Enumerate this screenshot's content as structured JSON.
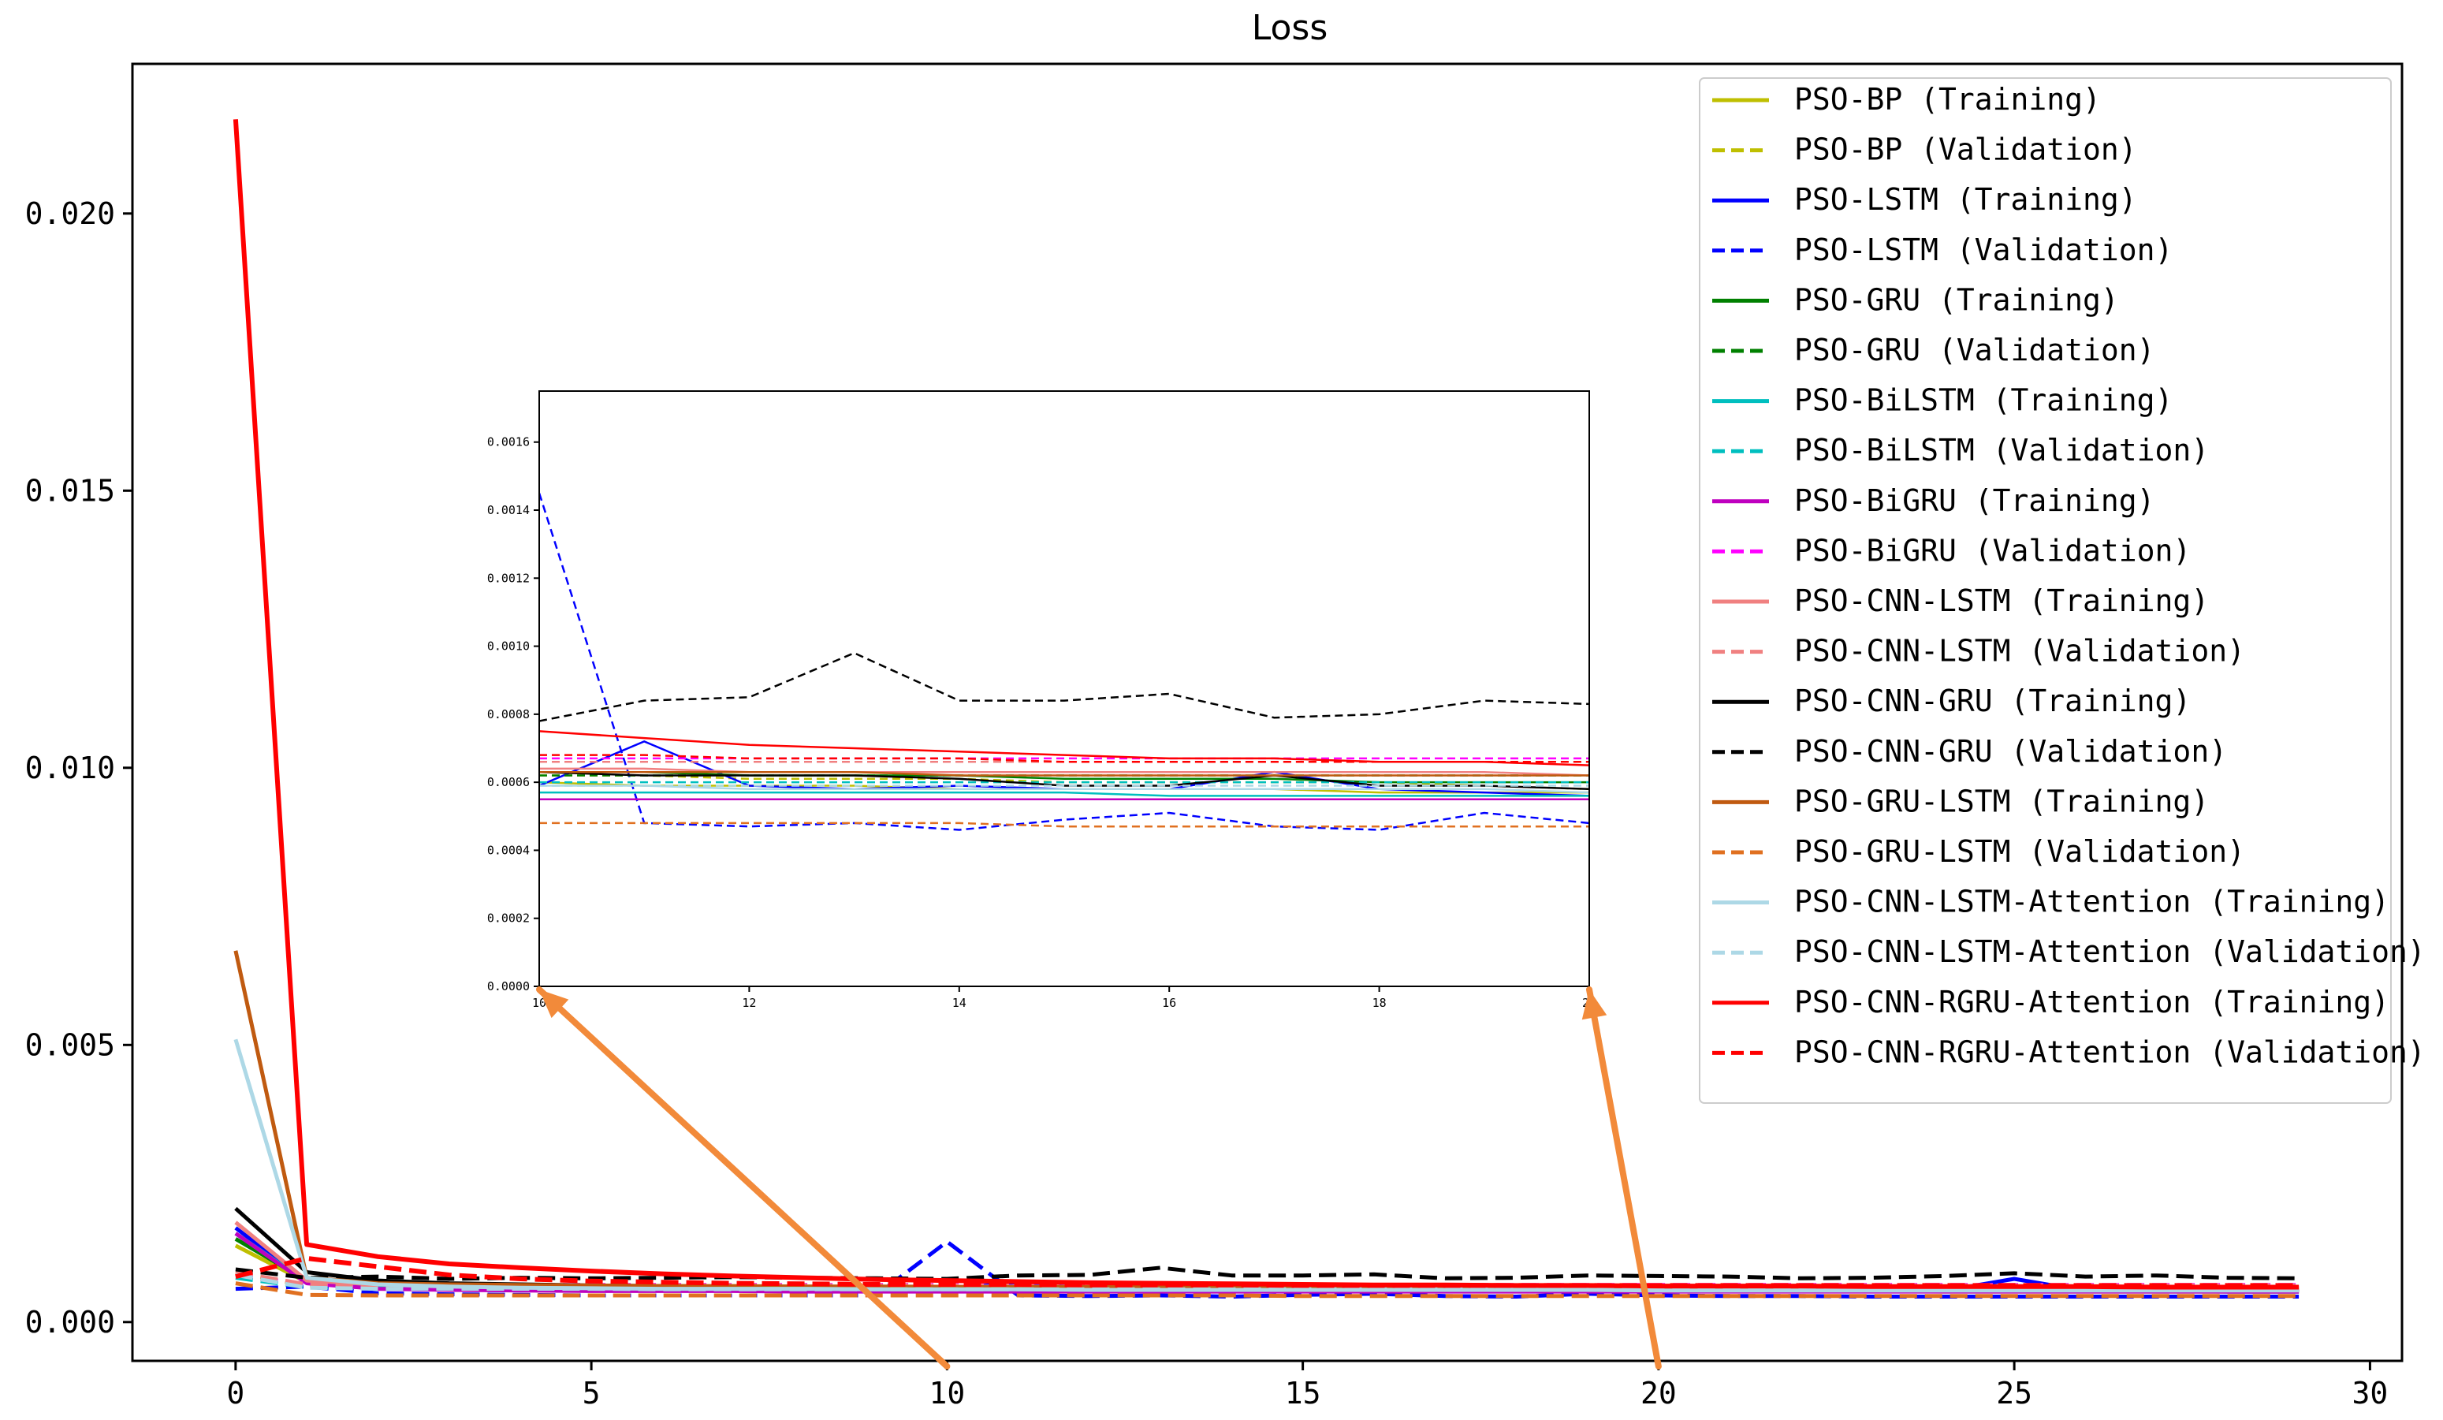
{
  "chart_data": {
    "type": "line",
    "title": "Loss",
    "xlabel": "",
    "ylabel": "",
    "xlim": [
      -1.45,
      30.45
    ],
    "ylim": [
      -0.0007,
      0.0227
    ],
    "xticks": [
      0,
      5,
      10,
      15,
      20,
      25,
      30
    ],
    "yticks": [
      0.0,
      0.005,
      0.01,
      0.015,
      0.02
    ],
    "ytick_labels": [
      "0.000",
      "0.005",
      "0.010",
      "0.015",
      "0.020"
    ],
    "legend_position": "upper-right",
    "series": [
      {
        "name": "PSO-BP (Training)",
        "color": "#bfbf00",
        "dash": "solid",
        "values": [
          0.00138,
          0.00072,
          0.00066,
          0.00064,
          0.00063,
          0.00062,
          0.00061,
          0.00061,
          0.0006,
          0.0006,
          0.0006,
          0.00059,
          0.00059,
          0.00059,
          0.00058,
          0.00058,
          0.00058,
          0.00058,
          0.00057,
          0.00057,
          0.00057,
          0.00056,
          0.00056,
          0.00056,
          0.00055,
          0.00055,
          0.00055,
          0.00055,
          0.00055,
          0.00055
        ]
      },
      {
        "name": "PSO-BP (Validation)",
        "color": "#bfbf00",
        "dash": "dashed",
        "values": [
          0.0009,
          0.00066,
          0.00064,
          0.00063,
          0.00062,
          0.00062,
          0.00062,
          0.00062,
          0.00062,
          0.00062,
          0.00062,
          0.00062,
          0.00061,
          0.00061,
          0.00061,
          0.0006,
          0.0006,
          0.0006,
          0.0006,
          0.00059,
          0.00058,
          0.00058,
          0.00057,
          0.00057,
          0.00056,
          0.00056,
          0.00056,
          0.00055,
          0.00055,
          0.00055
        ]
      },
      {
        "name": "PSO-LSTM (Training)",
        "color": "#0000ff",
        "dash": "solid",
        "values": [
          0.0017,
          0.00072,
          0.00064,
          0.00062,
          0.00061,
          0.0006,
          0.0006,
          0.00059,
          0.00059,
          0.00059,
          0.00059,
          0.00072,
          0.00059,
          0.00058,
          0.00059,
          0.00058,
          0.00058,
          0.00063,
          0.00058,
          0.00057,
          0.00056,
          0.00056,
          0.00057,
          0.00058,
          0.00056,
          0.00078,
          0.00056,
          0.00056,
          0.00055,
          0.00055
        ]
      },
      {
        "name": "PSO-LSTM (Validation)",
        "color": "#0000ff",
        "dash": "dashed",
        "values": [
          0.0006,
          0.00064,
          0.00052,
          0.0005,
          0.00049,
          0.00048,
          0.00048,
          0.00048,
          0.00048,
          0.00048,
          0.00145,
          0.00048,
          0.00047,
          0.00048,
          0.00046,
          0.00049,
          0.00051,
          0.00047,
          0.00046,
          0.00051,
          0.00048,
          0.00047,
          0.00047,
          0.00046,
          0.00046,
          0.00046,
          0.00046,
          0.00046,
          0.00046,
          0.00046
        ]
      },
      {
        "name": "PSO-GRU (Training)",
        "color": "#008000",
        "dash": "solid",
        "values": [
          0.0015,
          0.00075,
          0.00068,
          0.00066,
          0.00065,
          0.00064,
          0.00064,
          0.00064,
          0.00063,
          0.00063,
          0.00063,
          0.00063,
          0.00062,
          0.00062,
          0.00062,
          0.00061,
          0.00061,
          0.00061,
          0.0006,
          0.0006,
          0.0006,
          0.0006,
          0.0006,
          0.00059,
          0.00059,
          0.00059,
          0.00059,
          0.00059,
          0.00059,
          0.00059
        ]
      },
      {
        "name": "PSO-GRU (Validation)",
        "color": "#008000",
        "dash": "dashed",
        "values": [
          0.00085,
          0.00066,
          0.00064,
          0.00063,
          0.00063,
          0.00063,
          0.00062,
          0.00062,
          0.00062,
          0.00062,
          0.00062,
          0.00062,
          0.00062,
          0.00062,
          0.00062,
          0.00062,
          0.00062,
          0.00062,
          0.00062,
          0.00062,
          0.00062,
          0.00062,
          0.00062,
          0.00062,
          0.00062,
          0.00062,
          0.00062,
          0.00062,
          0.00062,
          0.00062
        ]
      },
      {
        "name": "PSO-BiLSTM (Training)",
        "color": "#00bfbf",
        "dash": "solid",
        "values": [
          0.0016,
          0.00072,
          0.00062,
          0.0006,
          0.00059,
          0.00058,
          0.00058,
          0.00058,
          0.00058,
          0.00057,
          0.00057,
          0.00057,
          0.00057,
          0.00057,
          0.00057,
          0.00057,
          0.00056,
          0.00056,
          0.00056,
          0.00056,
          0.00056,
          0.00056,
          0.00056,
          0.00056,
          0.00056,
          0.00056,
          0.00056,
          0.00056,
          0.00056,
          0.00056
        ]
      },
      {
        "name": "PSO-BiLSTM (Validation)",
        "color": "#00bfbf",
        "dash": "dashed",
        "values": [
          0.0008,
          0.00063,
          0.00061,
          0.0006,
          0.0006,
          0.0006,
          0.0006,
          0.0006,
          0.0006,
          0.0006,
          0.0006,
          0.0006,
          0.0006,
          0.0006,
          0.0006,
          0.0006,
          0.0006,
          0.0006,
          0.0006,
          0.0006,
          0.0006,
          0.0006,
          0.0006,
          0.0006,
          0.0006,
          0.0006,
          0.0006,
          0.0006,
          0.0006,
          0.0006
        ]
      },
      {
        "name": "PSO-BiGRU (Training)",
        "color": "#bf00bf",
        "dash": "solid",
        "values": [
          0.0016,
          0.0007,
          0.0006,
          0.00058,
          0.00057,
          0.00056,
          0.00056,
          0.00056,
          0.00055,
          0.00055,
          0.00055,
          0.00055,
          0.00055,
          0.00055,
          0.00055,
          0.00055,
          0.00055,
          0.00055,
          0.00055,
          0.00055,
          0.00055,
          0.00055,
          0.00055,
          0.00055,
          0.00055,
          0.00055,
          0.00055,
          0.00055,
          0.00055,
          0.00055
        ]
      },
      {
        "name": "PSO-BiGRU (Validation)",
        "color": "#ff00ff",
        "dash": "dashed",
        "values": [
          0.00085,
          0.00068,
          0.00067,
          0.00067,
          0.00067,
          0.00067,
          0.00067,
          0.00067,
          0.00067,
          0.00067,
          0.00067,
          0.00067,
          0.00067,
          0.00067,
          0.00067,
          0.00067,
          0.00067,
          0.00067,
          0.00067,
          0.00067,
          0.00067,
          0.00067,
          0.00067,
          0.00067,
          0.00067,
          0.00067,
          0.00067,
          0.00067,
          0.00067,
          0.00067
        ]
      },
      {
        "name": "PSO-CNN-LSTM (Training)",
        "color": "#f08080",
        "dash": "solid",
        "values": [
          0.0018,
          0.00075,
          0.00068,
          0.00066,
          0.00065,
          0.00065,
          0.00064,
          0.00064,
          0.00064,
          0.00064,
          0.00064,
          0.00064,
          0.00063,
          0.00063,
          0.00063,
          0.00063,
          0.00063,
          0.00063,
          0.00063,
          0.00063,
          0.00062,
          0.00062,
          0.00062,
          0.00062,
          0.00062,
          0.00062,
          0.00062,
          0.00062,
          0.00062,
          0.00062
        ]
      },
      {
        "name": "PSO-CNN-LSTM (Validation)",
        "color": "#f08080",
        "dash": "dashed",
        "values": [
          0.0009,
          0.00068,
          0.00066,
          0.00066,
          0.00066,
          0.00066,
          0.00066,
          0.00066,
          0.00066,
          0.00066,
          0.00066,
          0.00066,
          0.00066,
          0.00066,
          0.00066,
          0.00066,
          0.00066,
          0.00066,
          0.00066,
          0.00066,
          0.00066,
          0.00066,
          0.00066,
          0.00066,
          0.00066,
          0.00066,
          0.00066,
          0.00066,
          0.00066,
          0.00066
        ]
      },
      {
        "name": "PSO-CNN-GRU (Training)",
        "color": "#000000",
        "dash": "solid",
        "values": [
          0.00205,
          0.0009,
          0.00075,
          0.0007,
          0.00068,
          0.00066,
          0.00065,
          0.00064,
          0.00063,
          0.00063,
          0.00063,
          0.00062,
          0.00062,
          0.00062,
          0.00061,
          0.00059,
          0.00059,
          0.00062,
          0.00059,
          0.00059,
          0.00058,
          0.00058,
          0.00058,
          0.00058,
          0.00058,
          0.00058,
          0.00058,
          0.00058,
          0.00058,
          0.00058
        ]
      },
      {
        "name": "PSO-CNN-GRU (Validation)",
        "color": "#000000",
        "dash": "dashed",
        "values": [
          0.00095,
          0.0008,
          0.00082,
          0.00078,
          0.0008,
          0.00079,
          0.0008,
          0.00081,
          0.0008,
          0.00079,
          0.00078,
          0.00084,
          0.00085,
          0.00098,
          0.00084,
          0.00084,
          0.00086,
          0.00079,
          0.0008,
          0.00084,
          0.00083,
          0.00082,
          0.00079,
          0.0008,
          0.00083,
          0.00088,
          0.00082,
          0.00084,
          0.0008,
          0.00079
        ]
      },
      {
        "name": "PSO-GRU-LSTM (Training)",
        "color": "#c05a10",
        "dash": "solid",
        "values": [
          0.0067,
          0.0008,
          0.0007,
          0.00068,
          0.00067,
          0.00066,
          0.00065,
          0.00065,
          0.00064,
          0.00064,
          0.00063,
          0.00063,
          0.00063,
          0.00063,
          0.00062,
          0.00062,
          0.00062,
          0.00062,
          0.00062,
          0.00062,
          0.00062,
          0.00062,
          0.00062,
          0.00062,
          0.00062,
          0.00062,
          0.00062,
          0.00062,
          0.00062,
          0.00062
        ]
      },
      {
        "name": "PSO-GRU-LSTM (Validation)",
        "color": "#e07020",
        "dash": "dashed",
        "values": [
          0.0007,
          0.00049,
          0.00048,
          0.00048,
          0.00048,
          0.00048,
          0.00048,
          0.00048,
          0.00048,
          0.00048,
          0.00048,
          0.00048,
          0.00048,
          0.00048,
          0.00048,
          0.00047,
          0.00047,
          0.00047,
          0.00047,
          0.00047,
          0.00047,
          0.00047,
          0.00047,
          0.00047,
          0.00047,
          0.00047,
          0.00047,
          0.00047,
          0.00047,
          0.00047
        ]
      },
      {
        "name": "PSO-CNN-LSTM-Attention (Training)",
        "color": "#add8e6",
        "dash": "solid",
        "values": [
          0.0051,
          0.0008,
          0.00068,
          0.00064,
          0.00062,
          0.00061,
          0.0006,
          0.0006,
          0.0006,
          0.00059,
          0.00059,
          0.00059,
          0.00058,
          0.00058,
          0.00058,
          0.00058,
          0.00058,
          0.00058,
          0.00058,
          0.00058,
          0.00057,
          0.00057,
          0.00057,
          0.00057,
          0.00057,
          0.00057,
          0.00057,
          0.00057,
          0.00057,
          0.00057
        ]
      },
      {
        "name": "PSO-CNN-LSTM-Attention (Validation)",
        "color": "#add8e6",
        "dash": "dashed",
        "values": [
          0.00085,
          0.00062,
          0.0006,
          0.0006,
          0.0006,
          0.0006,
          0.00059,
          0.00059,
          0.00059,
          0.00059,
          0.00059,
          0.00059,
          0.00059,
          0.00059,
          0.00059,
          0.00059,
          0.00059,
          0.00059,
          0.00059,
          0.00059,
          0.00059,
          0.00059,
          0.00059,
          0.00059,
          0.00059,
          0.00059,
          0.00059,
          0.00059,
          0.00059,
          0.00059
        ]
      },
      {
        "name": "PSO-CNN-RGRU-Attention (Training)",
        "color": "#ff0000",
        "dash": "solid",
        "values": [
          0.0217,
          0.0014,
          0.00118,
          0.00105,
          0.00098,
          0.00092,
          0.00087,
          0.00083,
          0.0008,
          0.00077,
          0.00075,
          0.00073,
          0.00071,
          0.0007,
          0.00069,
          0.00068,
          0.00067,
          0.00067,
          0.00066,
          0.00066,
          0.00065,
          0.00065,
          0.00065,
          0.00064,
          0.00064,
          0.00064,
          0.00064,
          0.00063,
          0.00063,
          0.00063
        ]
      },
      {
        "name": "PSO-CNN-RGRU-Attention (Validation)",
        "color": "#ff0000",
        "dash": "dashed",
        "values": [
          0.00082,
          0.00115,
          0.001,
          0.00085,
          0.00078,
          0.00074,
          0.00072,
          0.0007,
          0.00069,
          0.00068,
          0.00068,
          0.00068,
          0.00067,
          0.00067,
          0.00067,
          0.00066,
          0.00066,
          0.00066,
          0.00066,
          0.00066,
          0.00066,
          0.00066,
          0.00066,
          0.00066,
          0.00066,
          0.00066,
          0.00066,
          0.00066,
          0.00066,
          0.00066
        ]
      }
    ],
    "inset": {
      "xlim": [
        10,
        20
      ],
      "ylim": [
        0,
        0.00175
      ],
      "xticks": [
        10,
        12,
        14,
        16,
        18,
        20
      ],
      "yticks": [
        0,
        0.0002,
        0.0004,
        0.0006,
        0.0008,
        0.001,
        0.0012,
        0.0014,
        0.0016
      ],
      "ytick_labels": [
        "0.0000",
        "0.0002",
        "0.0004",
        "0.0006",
        "0.0008",
        "0.0010",
        "0.0012",
        "0.0014",
        "0.0016"
      ]
    },
    "annotation": {
      "description": "zoom-in arrows",
      "from_x": [
        10,
        20
      ],
      "color": "#f28a3a"
    }
  }
}
